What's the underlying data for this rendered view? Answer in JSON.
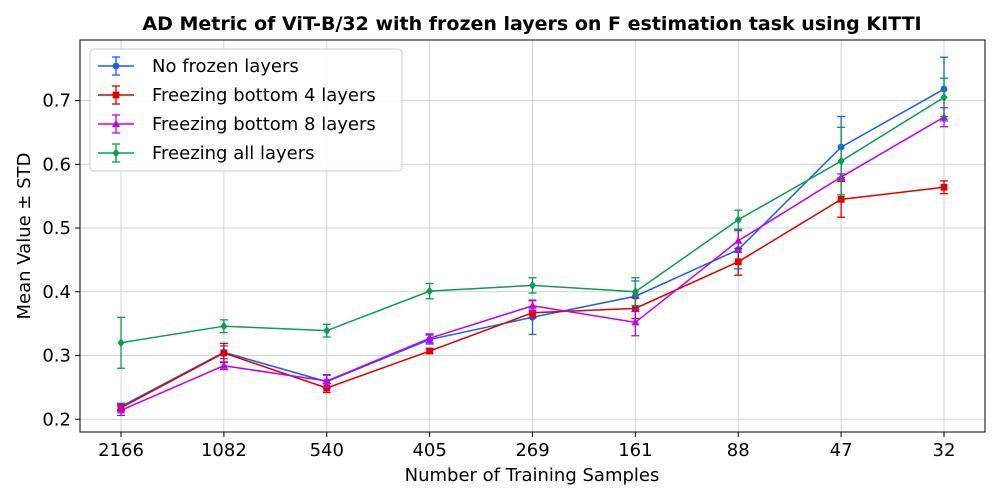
{
  "chart_data": {
    "type": "line",
    "title": "AD Metric of ViT-B/32 with frozen layers on F estimation task using KITTI",
    "xlabel": "Number of Training Samples",
    "ylabel": "Mean Value ± STD",
    "categories": [
      "2166",
      "1082",
      "540",
      "405",
      "269",
      "161",
      "88",
      "47",
      "32"
    ],
    "ylim": [
      0.18,
      0.795
    ],
    "yticks": [
      0.2,
      0.3,
      0.4,
      0.5,
      0.6,
      0.7
    ],
    "ytick_labels": [
      "0.2",
      "0.3",
      "0.4",
      "0.5",
      "0.6",
      "0.7"
    ],
    "grid": true,
    "legend_position": "top-left",
    "series": [
      {
        "name": "No frozen layers",
        "color": "#1a5ff0",
        "marker": "circle",
        "values": [
          0.22,
          0.305,
          0.259,
          0.325,
          0.36,
          0.393,
          0.466,
          0.627,
          0.718
        ],
        "errors": [
          0.005,
          0.01,
          0.01,
          0.007,
          0.027,
          0.024,
          0.03,
          0.048,
          0.05
        ]
      },
      {
        "name": "Freezing bottom 4 layers",
        "color": "#e00000",
        "marker": "square",
        "values": [
          0.218,
          0.304,
          0.249,
          0.307,
          0.367,
          0.374,
          0.447,
          0.545,
          0.564
        ],
        "errors": [
          0.005,
          0.015,
          0.007,
          0.004,
          0.008,
          0.016,
          0.021,
          0.028,
          0.01
        ]
      },
      {
        "name": "Freezing bottom 8 layers",
        "color": "#c200f0",
        "marker": "triangle",
        "values": [
          0.214,
          0.284,
          0.26,
          0.327,
          0.378,
          0.352,
          0.48,
          0.58,
          0.674
        ],
        "errors": [
          0.008,
          0.006,
          0.01,
          0.007,
          0.008,
          0.021,
          0.018,
          0.005,
          0.015
        ]
      },
      {
        "name": "Freezing all layers",
        "color": "#0a9e4f",
        "marker": "diamond",
        "values": [
          0.32,
          0.346,
          0.339,
          0.401,
          0.41,
          0.4,
          0.513,
          0.605,
          0.705
        ],
        "errors": [
          0.04,
          0.01,
          0.01,
          0.012,
          0.012,
          0.022,
          0.015,
          0.053,
          0.03
        ]
      }
    ]
  }
}
